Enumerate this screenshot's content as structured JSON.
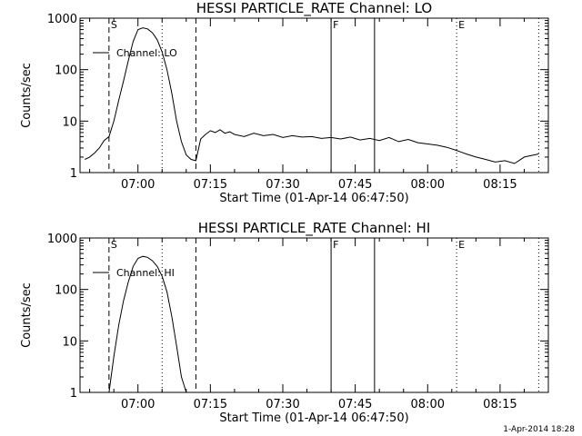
{
  "footer": "1-Apr-2014 18:28",
  "chart_data": [
    {
      "type": "line",
      "title": "HESSI PARTICLE_RATE Channel: LO",
      "xlabel": "Start Time (01-Apr-14 06:47:50)",
      "ylabel": "Counts/sec",
      "yscale": "log",
      "ylim": [
        1,
        1000
      ],
      "y_ticks": [
        1,
        10,
        100,
        1000
      ],
      "y_tick_labels": [
        "1",
        "10",
        "100",
        "1000"
      ],
      "xlim": [
        "06:48",
        "08:25"
      ],
      "x_ticks": [
        "07:00",
        "07:15",
        "07:30",
        "07:45",
        "08:00",
        "08:15"
      ],
      "legend": {
        "entries": [
          "Channel: LO"
        ],
        "placement": "top-left"
      },
      "markers": [
        {
          "label": "S",
          "time": "06:54",
          "style": "dashed"
        },
        {
          "label": "",
          "time": "07:05",
          "style": "dotted"
        },
        {
          "label": "",
          "time": "07:12",
          "style": "dashed"
        },
        {
          "label": "F",
          "time": "07:40",
          "style": "solid"
        },
        {
          "label": "",
          "time": "07:49",
          "style": "solid"
        },
        {
          "label": "E",
          "time": "08:06",
          "style": "dotted"
        },
        {
          "label": "",
          "time": "08:23",
          "style": "dotted"
        }
      ],
      "series": [
        {
          "name": "Channel: LO",
          "x": [
            "06:49",
            "06:50",
            "06:51",
            "06:52",
            "06:53",
            "06:54",
            "06:55",
            "06:56",
            "06:57",
            "06:58",
            "06:59",
            "07:00",
            "07:01",
            "07:02",
            "07:03",
            "07:04",
            "07:05",
            "07:06",
            "07:07",
            "07:08",
            "07:09",
            "07:10",
            "07:11",
            "07:12",
            "07:13",
            "07:14",
            "07:15",
            "07:16",
            "07:17",
            "07:18",
            "07:19",
            "07:20",
            "07:22",
            "07:24",
            "07:26",
            "07:28",
            "07:30",
            "07:32",
            "07:34",
            "07:36",
            "07:38",
            "07:40",
            "07:42",
            "07:44",
            "07:46",
            "07:48",
            "07:50",
            "07:52",
            "07:54",
            "07:56",
            "07:58",
            "08:00",
            "08:02",
            "08:04",
            "08:06",
            "08:08",
            "08:10",
            "08:12",
            "08:14",
            "08:16",
            "08:18",
            "08:20",
            "08:22",
            "08:23"
          ],
          "y": [
            1.8,
            2.0,
            2.4,
            3.0,
            4.2,
            5.0,
            10,
            25,
            60,
            150,
            350,
            600,
            650,
            620,
            520,
            380,
            220,
            100,
            35,
            10,
            4,
            2.2,
            1.8,
            1.7,
            4.5,
            5.5,
            6.5,
            6.0,
            6.8,
            5.8,
            6.2,
            5.5,
            5.0,
            5.8,
            5.2,
            5.5,
            4.8,
            5.2,
            4.9,
            5.0,
            4.6,
            4.8,
            4.5,
            4.9,
            4.3,
            4.6,
            4.2,
            4.8,
            4.0,
            4.4,
            3.8,
            3.6,
            3.4,
            3.1,
            2.7,
            2.3,
            2.0,
            1.8,
            1.6,
            1.7,
            1.5,
            2.0,
            2.2,
            2.3
          ]
        }
      ]
    },
    {
      "type": "line",
      "title": "HESSI PARTICLE_RATE Channel: HI",
      "xlabel": "Start Time (01-Apr-14 06:47:50)",
      "ylabel": "Counts/sec",
      "yscale": "log",
      "ylim": [
        1,
        1000
      ],
      "y_ticks": [
        1,
        10,
        100,
        1000
      ],
      "y_tick_labels": [
        "1",
        "10",
        "100",
        "1000"
      ],
      "xlim": [
        "06:48",
        "08:25"
      ],
      "x_ticks": [
        "07:00",
        "07:15",
        "07:30",
        "07:45",
        "08:00",
        "08:15"
      ],
      "legend": {
        "entries": [
          "Channel: HI"
        ],
        "placement": "top-left"
      },
      "markers": [
        {
          "label": "S",
          "time": "06:54",
          "style": "dashed"
        },
        {
          "label": "",
          "time": "07:05",
          "style": "dotted"
        },
        {
          "label": "",
          "time": "07:12",
          "style": "dashed"
        },
        {
          "label": "F",
          "time": "07:40",
          "style": "solid"
        },
        {
          "label": "",
          "time": "07:49",
          "style": "solid"
        },
        {
          "label": "E",
          "time": "08:06",
          "style": "dotted"
        },
        {
          "label": "",
          "time": "08:23",
          "style": "dotted"
        }
      ],
      "series": [
        {
          "name": "Channel: HI",
          "x": [
            "06:54",
            "06:55",
            "06:56",
            "06:57",
            "06:58",
            "06:59",
            "07:00",
            "07:01",
            "07:02",
            "07:03",
            "07:04",
            "07:05",
            "07:06",
            "07:07",
            "07:08",
            "07:09",
            "07:10"
          ],
          "y": [
            1.0,
            5,
            20,
            60,
            140,
            280,
            400,
            440,
            420,
            360,
            280,
            180,
            90,
            30,
            8,
            2,
            1.0
          ]
        }
      ]
    }
  ]
}
